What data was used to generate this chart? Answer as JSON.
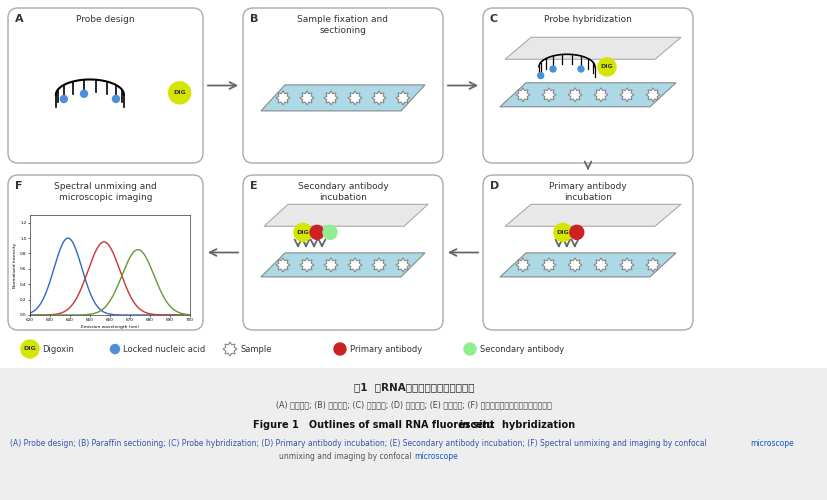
{
  "title_chinese": "图1  小RNA荧光原位杂交实验流程图",
  "subtitle_chinese": "(A) 探针设计; (B) 石蜡切片; (C) 探针杂交; (D) 一抗孵育; (E) 二抗孵育; (F) 光谱拆分以及激光共聚集显微成像",
  "panel_titles": {
    "A": "Probe design",
    "B": "Sample fixation and\nsectioning",
    "C": "Probe hybridization",
    "D": "Primary antibody\nincubation",
    "E": "Secondary antibody\nincubation",
    "F": "Spectral unmixing and\nmicroscopic imaging"
  },
  "bg_color": "#f0f0f0",
  "panel_bg": "#ffffff",
  "slide_color": "#add8e6",
  "coverslip_color": "#e8e8e8",
  "dig_color": "#d4e600",
  "locked_nucleic_color": "#4a90d9",
  "primary_ab_color": "#cc2222",
  "secondary_ab_color": "#90ee90",
  "arrow_color": "#666666",
  "box_edge_color": "#999999",
  "text_color": "#333333",
  "subtitle_color": "#555555",
  "en_subtitle_color": "#3355aa",
  "microscope_color": "#1155cc",
  "spectral_blue": "#3366cc",
  "spectral_red": "#cc3333",
  "spectral_green": "#669933"
}
